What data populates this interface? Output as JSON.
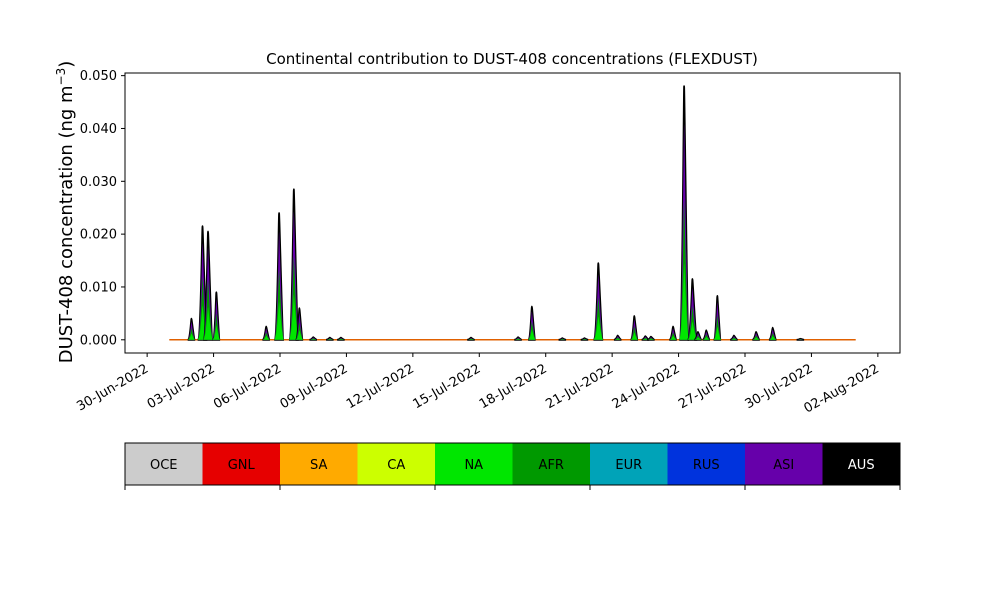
{
  "chart_data": {
    "type": "area",
    "title": "Continental contribution to DUST-408 concentrations (FLEXDUST)",
    "ylabel_main": "DUST-408 concentration (ng m",
    "ylabel_sup": "−3",
    "ylabel_close": ")",
    "xlabel": "",
    "xlim": [
      "2022-06-29",
      "2022-08-03"
    ],
    "ylim": [
      -0.0025,
      0.0505
    ],
    "x_ticks": [
      "30-Jun-2022",
      "03-Jul-2022",
      "06-Jul-2022",
      "09-Jul-2022",
      "12-Jul-2022",
      "15-Jul-2022",
      "18-Jul-2022",
      "21-Jul-2022",
      "24-Jul-2022",
      "27-Jul-2022",
      "30-Jul-2022",
      "02-Aug-2022"
    ],
    "y_ticks": [
      "0.000",
      "0.010",
      "0.020",
      "0.030",
      "0.040",
      "0.050"
    ],
    "y_tick_values": [
      0,
      0.01,
      0.02,
      0.03,
      0.04,
      0.05
    ],
    "legend_placement": "bottom colorbar",
    "series": [
      {
        "name": "OCE",
        "color": "#cccccc"
      },
      {
        "name": "GNL",
        "color": "#e60000"
      },
      {
        "name": "SA",
        "color": "#ffaa00"
      },
      {
        "name": "CA",
        "color": "#ccff00"
      },
      {
        "name": "NA",
        "color": "#00e600"
      },
      {
        "name": "AFR",
        "color": "#009900"
      },
      {
        "name": "EUR",
        "color": "#00a3b8"
      },
      {
        "name": "RUS",
        "color": "#0033dd"
      },
      {
        "name": "ASI",
        "color": "#6600aa"
      },
      {
        "name": "AUS",
        "color": "#000000"
      }
    ],
    "data_start": "2022-07-01",
    "data_end": "2022-08-01",
    "total_peaks": [
      {
        "x": "2022-07-02 00:00",
        "y": 0.004
      },
      {
        "x": "2022-07-02 12:00",
        "y": 0.0215
      },
      {
        "x": "2022-07-02 18:00",
        "y": 0.0205
      },
      {
        "x": "2022-07-03 03:00",
        "y": 0.009
      },
      {
        "x": "2022-07-05 09:00",
        "y": 0.0025
      },
      {
        "x": "2022-07-05 23:00",
        "y": 0.024
      },
      {
        "x": "2022-07-06 15:00",
        "y": 0.0285
      },
      {
        "x": "2022-07-06 21:00",
        "y": 0.006
      },
      {
        "x": "2022-07-07 12:00",
        "y": 0.0005
      },
      {
        "x": "2022-07-08 06:00",
        "y": 0.0004
      },
      {
        "x": "2022-07-08 18:00",
        "y": 0.0004
      },
      {
        "x": "2022-07-14 15:00",
        "y": 0.0004
      },
      {
        "x": "2022-07-16 18:00",
        "y": 0.0005
      },
      {
        "x": "2022-07-17 09:00",
        "y": 0.0063
      },
      {
        "x": "2022-07-18 18:00",
        "y": 0.0003
      },
      {
        "x": "2022-07-19 18:00",
        "y": 0.0003
      },
      {
        "x": "2022-07-20 09:00",
        "y": 0.0145
      },
      {
        "x": "2022-07-21 06:00",
        "y": 0.0008
      },
      {
        "x": "2022-07-22 00:00",
        "y": 0.0045
      },
      {
        "x": "2022-07-22 12:00",
        "y": 0.0007
      },
      {
        "x": "2022-07-22 18:00",
        "y": 0.0006
      },
      {
        "x": "2022-07-23 18:00",
        "y": 0.0025
      },
      {
        "x": "2022-07-24 06:00",
        "y": 0.048
      },
      {
        "x": "2022-07-24 15:00",
        "y": 0.0115
      },
      {
        "x": "2022-07-24 21:00",
        "y": 0.0015
      },
      {
        "x": "2022-07-25 06:00",
        "y": 0.0018
      },
      {
        "x": "2022-07-25 18:00",
        "y": 0.0083
      },
      {
        "x": "2022-07-26 12:00",
        "y": 0.0008
      },
      {
        "x": "2022-07-27 12:00",
        "y": 0.0015
      },
      {
        "x": "2022-07-28 06:00",
        "y": 0.0023
      },
      {
        "x": "2022-07-29 12:00",
        "y": 0.0002
      }
    ]
  }
}
